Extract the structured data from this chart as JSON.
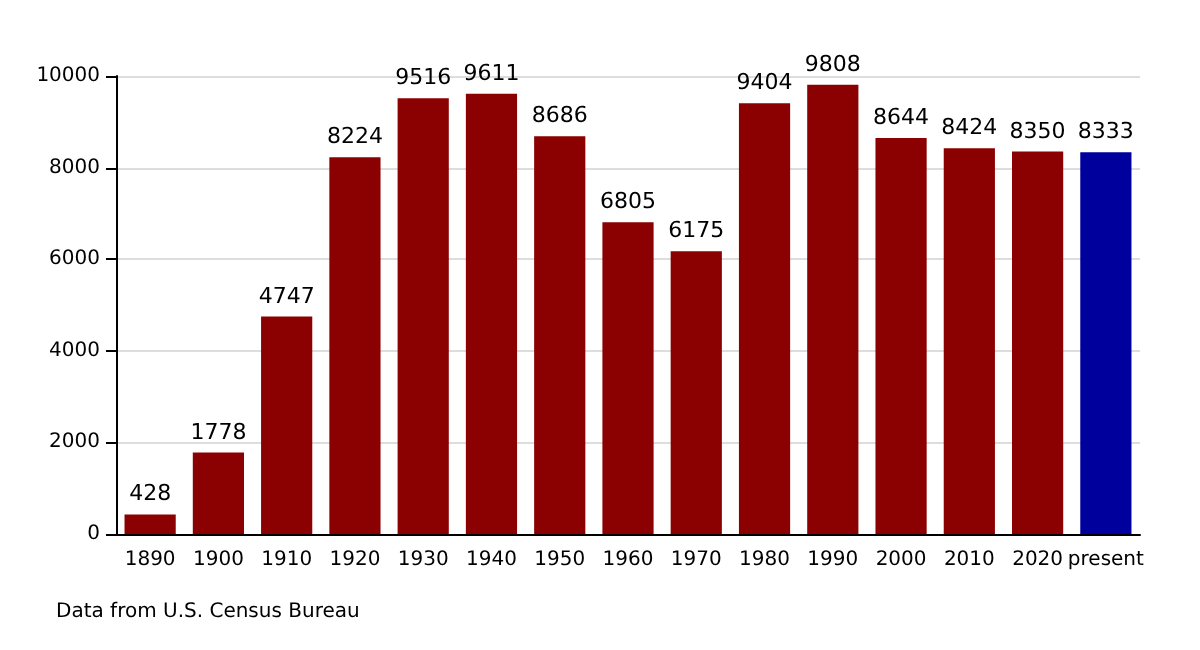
{
  "chart_data": {
    "type": "bar",
    "categories": [
      "1890",
      "1900",
      "1910",
      "1920",
      "1930",
      "1940",
      "1950",
      "1960",
      "1970",
      "1980",
      "1990",
      "2000",
      "2010",
      "2020",
      "present"
    ],
    "values": [
      428,
      1778,
      4747,
      8224,
      9516,
      9611,
      8686,
      6805,
      6175,
      9404,
      9808,
      8644,
      8424,
      8350,
      8333
    ],
    "colors": [
      "#8b0000",
      "#8b0000",
      "#8b0000",
      "#8b0000",
      "#8b0000",
      "#8b0000",
      "#8b0000",
      "#8b0000",
      "#8b0000",
      "#8b0000",
      "#8b0000",
      "#8b0000",
      "#8b0000",
      "#8b0000",
      "#00009c"
    ],
    "ylim": [
      0,
      10000
    ],
    "yticks": [
      0,
      2000,
      4000,
      6000,
      8000,
      10000
    ],
    "grid": "y",
    "data_labels": true,
    "annotations": [
      "Data from U.S. Census Bureau"
    ]
  }
}
